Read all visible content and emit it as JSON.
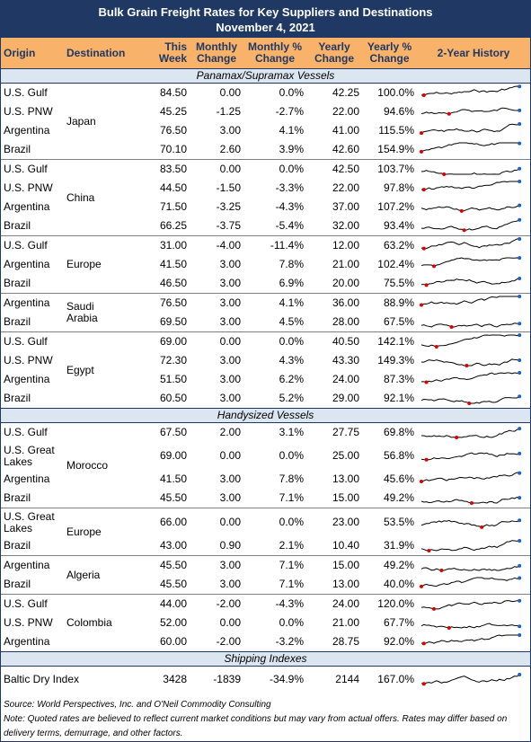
{
  "header": {
    "title": "Bulk Grain Freight Rates for Key Suppliers and Destinations",
    "date": "November 4, 2021"
  },
  "columns": [
    "Origin",
    "Destination",
    "This Week",
    "Monthly Change",
    "Monthly % Change",
    "Yearly Change",
    "Yearly % Change",
    "2-Year History"
  ],
  "sections": [
    {
      "title": "Panamax/Supramax Vessels",
      "groups": [
        {
          "destination": "Japan",
          "rows": [
            {
              "origin": "U.S. Gulf",
              "cells": [
                "84.50",
                "0.00",
                "0.0%",
                "42.25",
                "100.0%"
              ]
            },
            {
              "origin": "U.S. PNW",
              "cells": [
                "45.25",
                "-1.25",
                "-2.7%",
                "22.00",
                "94.6%"
              ]
            },
            {
              "origin": "Argentina",
              "cells": [
                "76.50",
                "3.00",
                "4.1%",
                "41.00",
                "115.5%"
              ]
            },
            {
              "origin": "Brazil",
              "cells": [
                "70.10",
                "2.60",
                "3.9%",
                "42.60",
                "154.9%"
              ]
            }
          ]
        },
        {
          "destination": "China",
          "rows": [
            {
              "origin": "U.S. Gulf",
              "cells": [
                "83.50",
                "0.00",
                "0.0%",
                "42.50",
                "103.7%"
              ]
            },
            {
              "origin": "U.S. PNW",
              "cells": [
                "44.50",
                "-1.50",
                "-3.3%",
                "22.00",
                "97.8%"
              ]
            },
            {
              "origin": "Argentina",
              "cells": [
                "71.50",
                "-3.25",
                "-4.3%",
                "37.00",
                "107.2%"
              ]
            },
            {
              "origin": "Brazil",
              "cells": [
                "66.25",
                "-3.75",
                "-5.4%",
                "32.00",
                "93.4%"
              ]
            }
          ]
        },
        {
          "destination": "Europe",
          "rows": [
            {
              "origin": "U.S. Gulf",
              "cells": [
                "31.00",
                "-4.00",
                "-11.4%",
                "12.00",
                "63.2%"
              ]
            },
            {
              "origin": "Argentina",
              "cells": [
                "41.50",
                "3.00",
                "7.8%",
                "21.00",
                "102.4%"
              ]
            },
            {
              "origin": "Brazil",
              "cells": [
                "46.50",
                "3.00",
                "6.9%",
                "20.00",
                "75.5%"
              ]
            }
          ]
        },
        {
          "destination": "Saudi Arabia",
          "rows": [
            {
              "origin": "Argentina",
              "cells": [
                "76.50",
                "3.00",
                "4.1%",
                "36.00",
                "88.9%"
              ]
            },
            {
              "origin": "Brazil",
              "cells": [
                "69.50",
                "3.00",
                "4.5%",
                "28.00",
                "67.5%"
              ]
            }
          ]
        },
        {
          "destination": "Egypt",
          "rows": [
            {
              "origin": "U.S. Gulf",
              "cells": [
                "69.00",
                "0.00",
                "0.0%",
                "40.50",
                "142.1%"
              ]
            },
            {
              "origin": "U.S. PNW",
              "cells": [
                "72.30",
                "3.00",
                "4.3%",
                "43.30",
                "149.3%"
              ]
            },
            {
              "origin": "Argentina",
              "cells": [
                "51.50",
                "3.00",
                "6.2%",
                "24.00",
                "87.3%"
              ]
            },
            {
              "origin": "Brazil",
              "cells": [
                "60.50",
                "3.00",
                "5.2%",
                "29.00",
                "92.1%"
              ]
            }
          ]
        }
      ]
    },
    {
      "title": "Handysized Vessels",
      "groups": [
        {
          "destination": "Morocco",
          "rows": [
            {
              "origin": "U.S. Gulf",
              "cells": [
                "67.50",
                "2.00",
                "3.1%",
                "27.75",
                "69.8%"
              ]
            },
            {
              "origin": "U.S. Great Lakes",
              "cells": [
                "69.00",
                "0.00",
                "0.0%",
                "25.00",
                "56.8%"
              ]
            },
            {
              "origin": "Argentina",
              "cells": [
                "41.50",
                "3.00",
                "7.8%",
                "13.00",
                "45.6%"
              ]
            },
            {
              "origin": "Brazil",
              "cells": [
                "45.50",
                "3.00",
                "7.1%",
                "15.00",
                "49.2%"
              ]
            }
          ]
        },
        {
          "destination": "Europe",
          "rows": [
            {
              "origin": "U.S. Great Lakes",
              "cells": [
                "66.00",
                "0.00",
                "0.0%",
                "23.00",
                "53.5%"
              ]
            },
            {
              "origin": "Brazil",
              "cells": [
                "43.00",
                "0.90",
                "2.1%",
                "10.40",
                "31.9%"
              ]
            }
          ]
        },
        {
          "destination": "Algeria",
          "rows": [
            {
              "origin": "Argentina",
              "cells": [
                "45.50",
                "3.00",
                "7.1%",
                "15.00",
                "49.2%"
              ]
            },
            {
              "origin": "Brazil",
              "cells": [
                "45.50",
                "3.00",
                "7.1%",
                "13.00",
                "40.0%"
              ]
            }
          ]
        },
        {
          "destination": "Colombia",
          "rows": [
            {
              "origin": "U.S. Gulf",
              "cells": [
                "44.00",
                "-2.00",
                "-4.3%",
                "24.00",
                "120.0%"
              ]
            },
            {
              "origin": "U.S. PNW",
              "cells": [
                "52.00",
                "0.00",
                "0.0%",
                "21.00",
                "67.7%"
              ]
            },
            {
              "origin": "Argentina",
              "cells": [
                "60.00",
                "-2.00",
                "-3.2%",
                "28.75",
                "92.0%"
              ]
            }
          ]
        }
      ]
    },
    {
      "title": "Shipping Indexes",
      "groups": [
        {
          "destination": "",
          "rows": [
            {
              "origin": "Baltic Dry Index",
              "cells": [
                "3428",
                "-1839",
                "-34.9%",
                "2144",
                "167.0%"
              ]
            }
          ]
        }
      ]
    }
  ],
  "footer": {
    "source": "Source: World Perspectives, Inc. and O'Neil Commodity Consulting",
    "note": "Note: Quoted rates are believed to reflect current market conditions but may vary from actual offers. Rates may differ based on delivery terms, demurrage, and other factors."
  }
}
